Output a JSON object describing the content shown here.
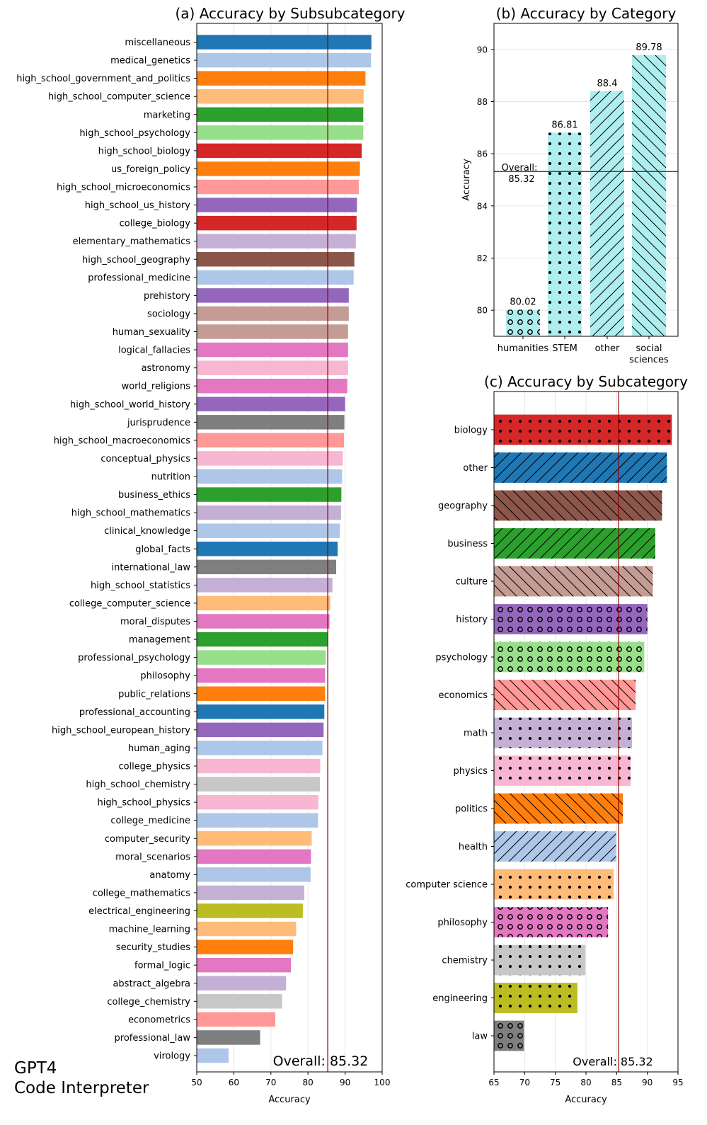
{
  "watermark": {
    "line1": "GPT4",
    "line2": "Code Interpreter"
  },
  "overall_color": "#8b0000",
  "chart_data": [
    {
      "id": "a",
      "type": "bar",
      "orientation": "horizontal",
      "title": "(a) Accuracy by Subsubcategory",
      "xlabel": "Accuracy",
      "xlim": [
        50,
        100
      ],
      "xticks": [
        50,
        60,
        70,
        80,
        90,
        100
      ],
      "grid": "x",
      "overall": 85.32,
      "overall_label": "Overall: 85.32",
      "categories": [
        "miscellaneous",
        "medical_genetics",
        "high_school_government_and_politics",
        "high_school_computer_science",
        "marketing",
        "high_school_psychology",
        "high_school_biology",
        "us_foreign_policy",
        "high_school_microeconomics",
        "high_school_us_history",
        "college_biology",
        "elementary_mathematics",
        "high_school_geography",
        "professional_medicine",
        "prehistory",
        "sociology",
        "human_sexuality",
        "logical_fallacies",
        "astronomy",
        "world_religions",
        "high_school_world_history",
        "jurisprudence",
        "high_school_macroeconomics",
        "conceptual_physics",
        "nutrition",
        "business_ethics",
        "high_school_mathematics",
        "clinical_knowledge",
        "global_facts",
        "international_law",
        "high_school_statistics",
        "college_computer_science",
        "moral_disputes",
        "management",
        "professional_psychology",
        "philosophy",
        "public_relations",
        "professional_accounting",
        "high_school_european_history",
        "human_aging",
        "college_physics",
        "high_school_chemistry",
        "high_school_physics",
        "college_medicine",
        "computer_security",
        "moral_scenarios",
        "anatomy",
        "college_mathematics",
        "electrical_engineering",
        "machine_learning",
        "security_studies",
        "formal_logic",
        "abstract_algebra",
        "college_chemistry",
        "econometrics",
        "professional_law",
        "virology"
      ],
      "values": [
        97.1,
        97.0,
        95.5,
        95.0,
        94.9,
        94.9,
        94.5,
        94.0,
        93.7,
        93.2,
        93.1,
        92.9,
        92.5,
        92.3,
        91.0,
        91.0,
        90.8,
        90.8,
        90.8,
        90.6,
        90.0,
        89.8,
        89.7,
        89.4,
        89.2,
        89.0,
        88.9,
        88.6,
        88.0,
        87.6,
        86.6,
        86.0,
        85.8,
        85.4,
        84.8,
        84.6,
        84.6,
        84.4,
        84.2,
        83.9,
        83.3,
        83.2,
        82.8,
        82.7,
        81.0,
        80.8,
        80.7,
        79.0,
        78.6,
        76.8,
        76.0,
        75.4,
        74.1,
        73.0,
        71.2,
        67.1,
        58.6
      ],
      "colors": [
        "#1f77b4",
        "#aec7e8",
        "#ff7f0e",
        "#ffbb78",
        "#2ca02c",
        "#98df8a",
        "#d62728",
        "#ff7f0e",
        "#ff9896",
        "#9467bd",
        "#d62728",
        "#c5b0d5",
        "#8c564b",
        "#aec7e8",
        "#9467bd",
        "#c49c94",
        "#c49c94",
        "#e377c2",
        "#f7b6d2",
        "#e377c2",
        "#9467bd",
        "#7f7f7f",
        "#ff9896",
        "#f7b6d2",
        "#aec7e8",
        "#2ca02c",
        "#c5b0d5",
        "#aec7e8",
        "#1f77b4",
        "#7f7f7f",
        "#c5b0d5",
        "#ffbb78",
        "#e377c2",
        "#2ca02c",
        "#98df8a",
        "#e377c2",
        "#ff7f0e",
        "#1f77b4",
        "#9467bd",
        "#aec7e8",
        "#f7b6d2",
        "#c7c7c7",
        "#f7b6d2",
        "#aec7e8",
        "#ffbb78",
        "#e377c2",
        "#aec7e8",
        "#c5b0d5",
        "#bcbd22",
        "#ffbb78",
        "#ff7f0e",
        "#e377c2",
        "#c5b0d5",
        "#c7c7c7",
        "#ff9896",
        "#7f7f7f",
        "#aec7e8"
      ]
    },
    {
      "id": "b",
      "type": "bar",
      "orientation": "vertical",
      "title": "(b) Accuracy by Category",
      "ylabel": "Accuracy",
      "ylim": [
        79,
        91
      ],
      "yticks": [
        80,
        82,
        84,
        86,
        88,
        90
      ],
      "grid": "y",
      "overall": 85.32,
      "overall_label_line1": "Overall:",
      "overall_label_line2": "85.32",
      "categories": [
        [
          "humanities"
        ],
        [
          "STEM"
        ],
        [
          "other"
        ],
        [
          "social",
          "sciences"
        ]
      ],
      "values": [
        80.02,
        86.81,
        88.4,
        89.78
      ],
      "value_labels": [
        "80.02",
        "86.81",
        "88.4",
        "89.78"
      ],
      "color": "#afeeee",
      "hatches": [
        "circles",
        "dots",
        "slash",
        "backslash"
      ]
    },
    {
      "id": "c",
      "type": "bar",
      "orientation": "horizontal",
      "title": "(c) Accuracy by Subcategory",
      "xlabel": "Accuracy",
      "xlim": [
        65,
        95
      ],
      "xticks": [
        65,
        70,
        75,
        80,
        85,
        90,
        95
      ],
      "grid": "x",
      "overall": 85.32,
      "overall_label": "Overall: 85.32",
      "categories": [
        "biology",
        "other",
        "geography",
        "business",
        "culture",
        "history",
        "psychology",
        "economics",
        "math",
        "physics",
        "politics",
        "health",
        "computer science",
        "philosophy",
        "chemistry",
        "engineering",
        "law"
      ],
      "values": [
        94.0,
        93.2,
        92.4,
        91.3,
        90.9,
        90.0,
        89.5,
        88.1,
        87.5,
        87.3,
        86.0,
        84.9,
        84.5,
        83.6,
        79.9,
        78.6,
        69.9
      ],
      "colors": [
        "#d62728",
        "#1f77b4",
        "#8c564b",
        "#2ca02c",
        "#c49c94",
        "#9467bd",
        "#98df8a",
        "#ff9896",
        "#c5b0d5",
        "#f7b6d2",
        "#ff7f0e",
        "#aec7e8",
        "#ffbb78",
        "#e377c2",
        "#c7c7c7",
        "#bcbd22",
        "#7f7f7f"
      ],
      "hatches": [
        "dots",
        "slash",
        "backslash",
        "slash",
        "backslash",
        "circles",
        "circles",
        "backslash",
        "dots",
        "dots",
        "backslash",
        "slash",
        "dots",
        "circles",
        "dots",
        "dots",
        "circles"
      ]
    }
  ]
}
